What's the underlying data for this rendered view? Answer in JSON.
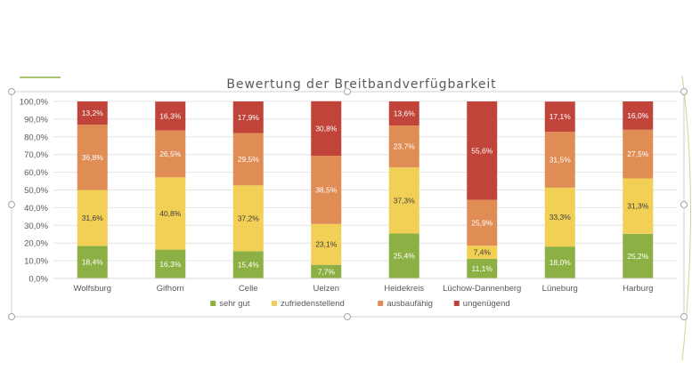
{
  "chart_data": {
    "type": "bar",
    "stacked": "percent",
    "title": "Bewertung der Breitbandverfügbarkeit",
    "xlabel": "",
    "ylabel": "",
    "ylim": [
      0,
      100
    ],
    "yticks": [
      "0,0%",
      "10,0%",
      "20,0%",
      "30,0%",
      "40,0%",
      "50,0%",
      "60,0%",
      "70,0%",
      "80,0%",
      "90,0%",
      "100,0%"
    ],
    "grid": true,
    "legend": "bottom",
    "categories": [
      "Wolfsburg",
      "Gifhorn",
      "Celle",
      "Uelzen",
      "Heidekreis",
      "Lüchow-Dannenberg",
      "Lüneburg",
      "Harburg"
    ],
    "series": [
      {
        "name": "sehr gut",
        "color": "#8DB045",
        "label_color": "#ffffff",
        "values": [
          18.4,
          16.3,
          15.4,
          7.7,
          25.4,
          11.1,
          18.0,
          25.2
        ],
        "labels": [
          "18,4%",
          "16,3%",
          "15,4%",
          "7,7%",
          "25,4%",
          "11,1%",
          "18,0%",
          "25,2%"
        ]
      },
      {
        "name": "zufriedenstellend",
        "color": "#F2CF55",
        "label_color": "#404040",
        "values": [
          31.6,
          40.8,
          37.2,
          23.1,
          37.3,
          7.4,
          33.3,
          31.3
        ],
        "labels": [
          "31,6%",
          "40,8%",
          "37,2%",
          "23,1%",
          "37,3%",
          "7,4%",
          "33,3%",
          "31,3%"
        ]
      },
      {
        "name": "ausbaufähig",
        "color": "#E08D55",
        "label_color": "#ffffff",
        "values": [
          36.8,
          26.5,
          29.5,
          38.5,
          23.7,
          25.9,
          31.5,
          27.5
        ],
        "labels": [
          "36,8%",
          "26,5%",
          "29,5%",
          "38,5%",
          "23,7%",
          "25,9%",
          "31,5%",
          "27,5%"
        ]
      },
      {
        "name": "ungenügend",
        "color": "#C0443A",
        "label_color": "#ffffff",
        "values": [
          13.2,
          16.3,
          17.9,
          30.8,
          13.6,
          55.6,
          17.1,
          16.0
        ],
        "labels": [
          "13,2%",
          "16,3%",
          "17,9%",
          "30,8%",
          "13,6%",
          "55,6%",
          "17,1%",
          "16,0%"
        ]
      }
    ]
  }
}
